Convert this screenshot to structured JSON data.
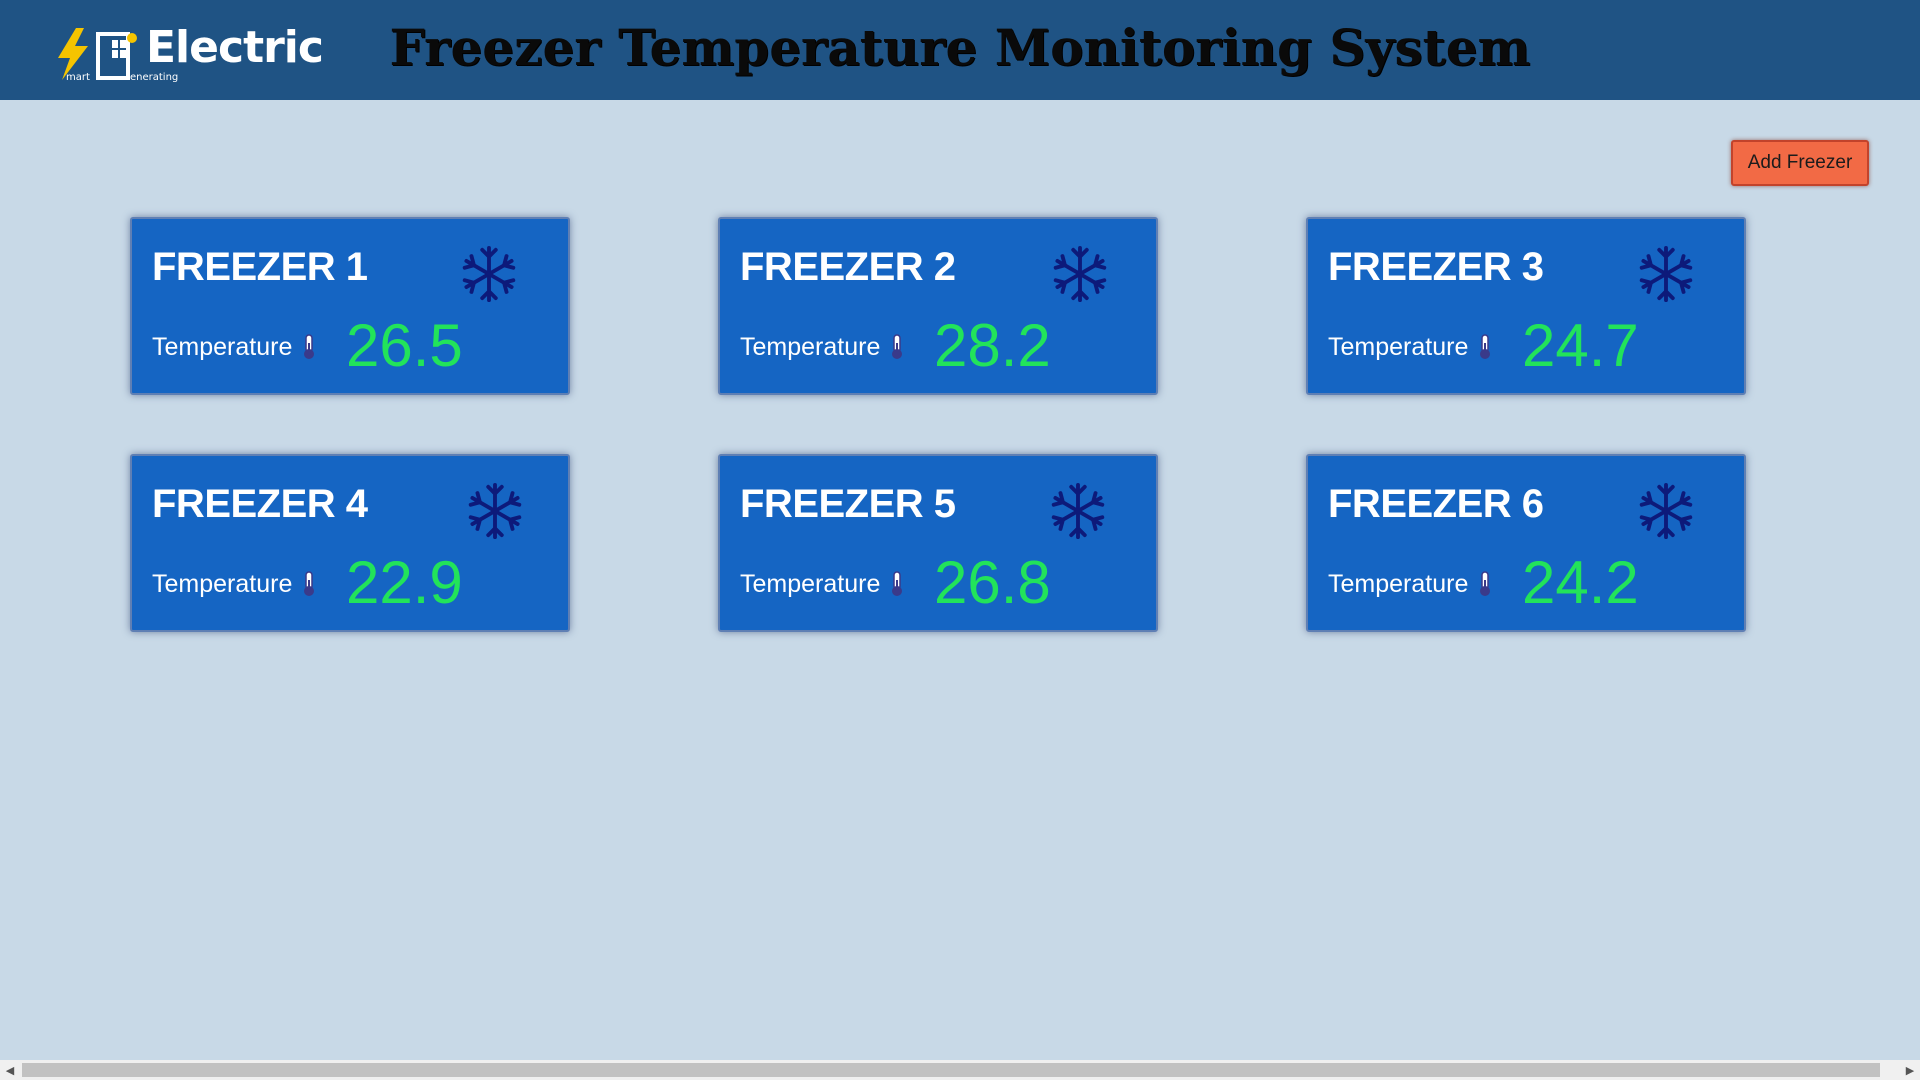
{
  "header": {
    "logo_text": "Electric",
    "logo_sub_left": "mart",
    "logo_sub_right": "enerating",
    "title": "Freezer Temperature Monitoring System"
  },
  "actions": {
    "add_label": "Add Freezer"
  },
  "freezers": [
    {
      "name": "FREEZER 1",
      "temp_label": "Temperature",
      "value": "26.5"
    },
    {
      "name": "FREEZER 2",
      "temp_label": "Temperature",
      "value": "28.2"
    },
    {
      "name": "FREEZER 3",
      "temp_label": "Temperature",
      "value": "24.7"
    },
    {
      "name": "FREEZER 4",
      "temp_label": "Temperature",
      "value": "22.9"
    },
    {
      "name": "FREEZER 5",
      "temp_label": "Temperature",
      "value": "26.8"
    },
    {
      "name": "FREEZER 6",
      "temp_label": "Temperature",
      "value": "24.2"
    }
  ],
  "icons": {
    "snowflake": "snowflake-icon",
    "thermometer": "thermometer-icon",
    "logo": "lightning-solar-logo"
  },
  "colors": {
    "header_bg": "#1f5384",
    "page_bg": "#c8d9e7",
    "card_bg": "#1565c3",
    "temp_value": "#22e35a",
    "snowflake": "#0d1a7a",
    "add_button": "#f26a45"
  }
}
